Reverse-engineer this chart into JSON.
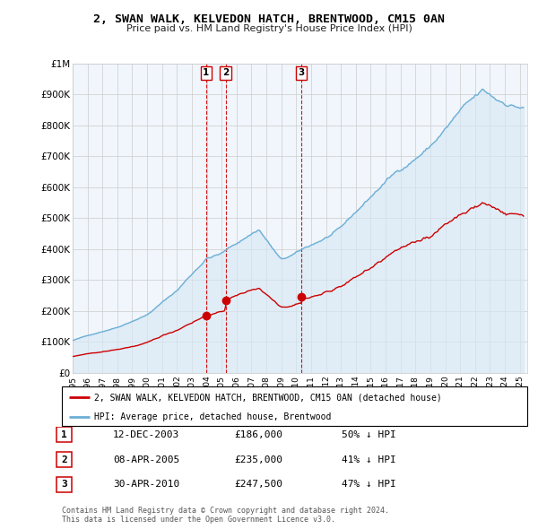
{
  "title": "2, SWAN WALK, KELVEDON HATCH, BRENTWOOD, CM15 0AN",
  "subtitle": "Price paid vs. HM Land Registry's House Price Index (HPI)",
  "ylim": [
    0,
    1000000
  ],
  "yticks": [
    0,
    100000,
    200000,
    300000,
    400000,
    500000,
    600000,
    700000,
    800000,
    900000,
    1000000
  ],
  "ytick_labels": [
    "£0",
    "£100K",
    "£200K",
    "£300K",
    "£400K",
    "£500K",
    "£600K",
    "£700K",
    "£800K",
    "£900K",
    "£1M"
  ],
  "xlim_start": 1995.0,
  "xlim_end": 2025.5,
  "hpi_color": "#6baed6",
  "hpi_fill_color": "#d6e8f5",
  "price_color": "#cc0000",
  "vline_color": "#cc0000",
  "grid_color": "#cccccc",
  "bg_color": "#ffffff",
  "plot_bg_color": "#f0f6fb",
  "transactions": [
    {
      "label": "1",
      "date": "12-DEC-2003",
      "year": 2003.95,
      "price": 186000,
      "pct": "50%",
      "dir": "↓"
    },
    {
      "label": "2",
      "date": "08-APR-2005",
      "year": 2005.27,
      "price": 235000,
      "pct": "41%",
      "dir": "↓"
    },
    {
      "label": "3",
      "date": "30-APR-2010",
      "year": 2010.33,
      "price": 247500,
      "pct": "47%",
      "dir": "↓"
    }
  ],
  "legend_property_label": "2, SWAN WALK, KELVEDON HATCH, BRENTWOOD, CM15 0AN (detached house)",
  "legend_hpi_label": "HPI: Average price, detached house, Brentwood",
  "footnote": "Contains HM Land Registry data © Crown copyright and database right 2024.\nThis data is licensed under the Open Government Licence v3.0."
}
